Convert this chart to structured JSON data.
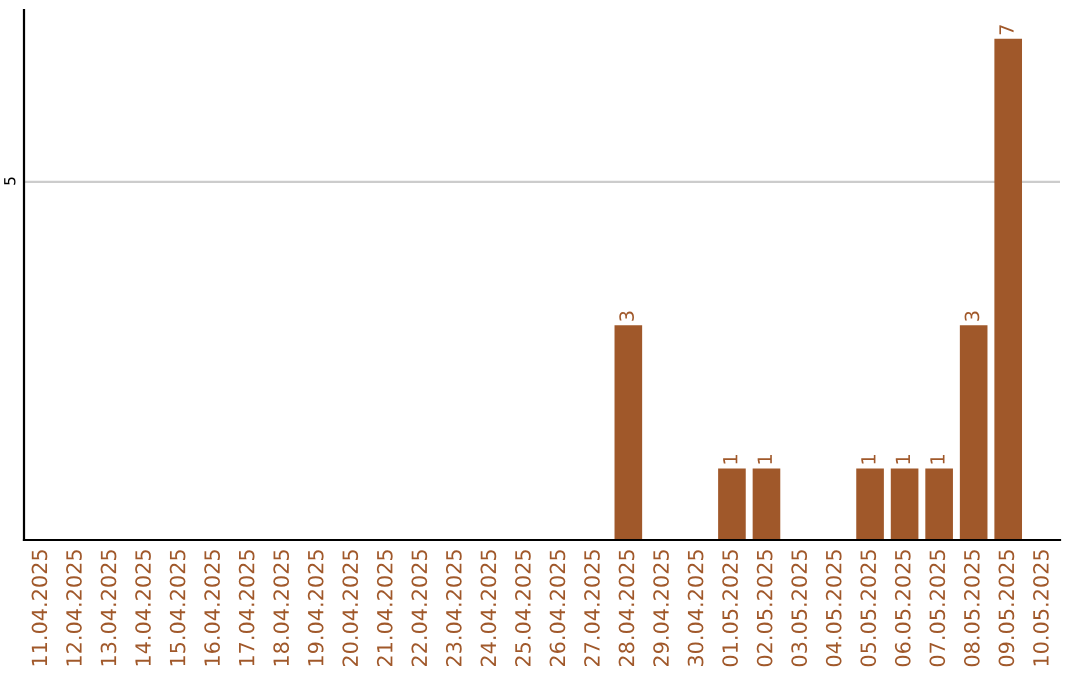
{
  "chart_data": {
    "type": "bar",
    "categories": [
      "11.04.2025",
      "12.04.2025",
      "13.04.2025",
      "14.04.2025",
      "15.04.2025",
      "16.04.2025",
      "17.04.2025",
      "18.04.2025",
      "19.04.2025",
      "20.04.2025",
      "21.04.2025",
      "22.04.2025",
      "23.04.2025",
      "24.04.2025",
      "25.04.2025",
      "26.04.2025",
      "27.04.2025",
      "28.04.2025",
      "29.04.2025",
      "30.04.2025",
      "01.05.2025",
      "02.05.2025",
      "03.05.2025",
      "04.05.2025",
      "05.05.2025",
      "06.05.2025",
      "07.05.2025",
      "08.05.2025",
      "09.05.2025",
      "10.05.2025"
    ],
    "values": [
      null,
      null,
      null,
      null,
      null,
      null,
      null,
      null,
      null,
      null,
      null,
      null,
      null,
      null,
      null,
      null,
      null,
      3,
      null,
      null,
      1,
      1,
      null,
      null,
      1,
      1,
      1,
      3,
      7,
      null
    ],
    "data_labels": true,
    "color": "#a0582a",
    "ylim": [
      0,
      7.4
    ],
    "yticks": [
      5
    ],
    "grid": "y"
  }
}
